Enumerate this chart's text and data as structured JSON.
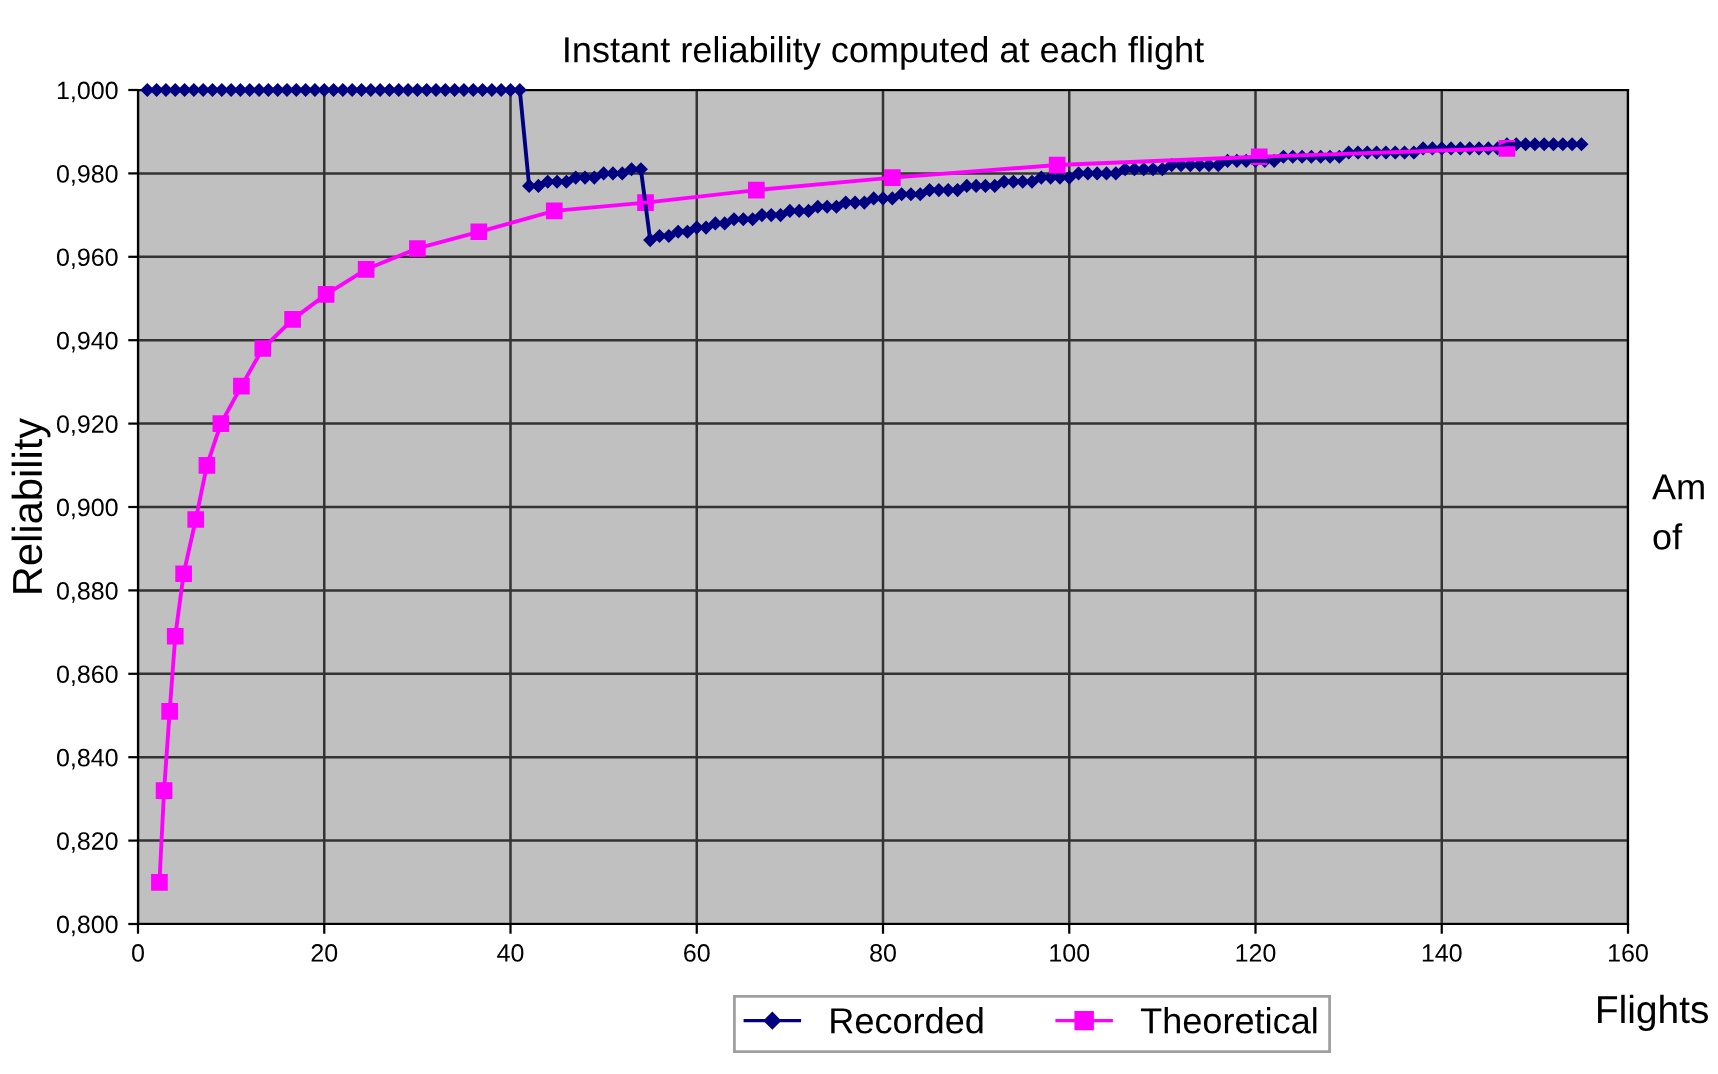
{
  "chart_data": {
    "type": "line",
    "title": "Instant reliability computed at each flight",
    "xlabel": "Flights",
    "ylabel": "Reliability",
    "annotations": [
      "Am",
      "of"
    ],
    "xlim": [
      0,
      160
    ],
    "xticks": [
      0,
      20,
      40,
      60,
      80,
      100,
      120,
      140,
      160
    ],
    "ylim": [
      0.8,
      1.0
    ],
    "yticks": [
      {
        "value": 0.8,
        "label": "0,800"
      },
      {
        "value": 0.82,
        "label": "0,820"
      },
      {
        "value": 0.84,
        "label": "0,840"
      },
      {
        "value": 0.86,
        "label": "0,860"
      },
      {
        "value": 0.88,
        "label": "0,880"
      },
      {
        "value": 0.9,
        "label": "0,900"
      },
      {
        "value": 0.92,
        "label": "0,920"
      },
      {
        "value": 0.94,
        "label": "0,940"
      },
      {
        "value": 0.96,
        "label": "0,960"
      },
      {
        "value": 0.98,
        "label": "0,980"
      },
      {
        "value": 1.0,
        "label": "1,000"
      }
    ],
    "grid": true,
    "legend": "bottom",
    "series": [
      {
        "name": "Recorded",
        "color": "#000080",
        "marker": "diamond",
        "x": [
          1,
          2,
          3,
          4,
          5,
          6,
          7,
          8,
          9,
          10,
          11,
          12,
          13,
          14,
          15,
          16,
          17,
          18,
          19,
          20,
          21,
          22,
          23,
          24,
          25,
          26,
          27,
          28,
          29,
          30,
          31,
          32,
          33,
          34,
          35,
          36,
          37,
          38,
          39,
          40,
          41,
          42,
          43,
          44,
          45,
          46,
          47,
          48,
          49,
          50,
          51,
          52,
          53,
          54,
          55,
          56,
          57,
          58,
          59,
          60,
          61,
          62,
          63,
          64,
          65,
          66,
          67,
          68,
          69,
          70,
          71,
          72,
          73,
          74,
          75,
          76,
          77,
          78,
          79,
          80,
          81,
          82,
          83,
          84,
          85,
          86,
          87,
          88,
          89,
          90,
          91,
          92,
          93,
          94,
          95,
          96,
          97,
          98,
          99,
          100,
          101,
          102,
          103,
          104,
          105,
          106,
          107,
          108,
          109,
          110,
          111,
          112,
          113,
          114,
          115,
          116,
          117,
          118,
          119,
          120,
          121,
          122,
          123,
          124,
          125,
          126,
          127,
          128,
          129,
          130,
          131,
          132,
          133,
          134,
          135,
          136,
          137,
          138,
          139,
          140,
          141,
          142,
          143,
          144,
          145,
          146,
          147,
          148,
          149,
          150,
          151,
          152,
          153,
          154,
          155
        ],
        "values": [
          1,
          1,
          1,
          1,
          1,
          1,
          1,
          1,
          1,
          1,
          1,
          1,
          1,
          1,
          1,
          1,
          1,
          1,
          1,
          1,
          1,
          1,
          1,
          1,
          1,
          1,
          1,
          1,
          1,
          1,
          1,
          1,
          1,
          1,
          1,
          1,
          1,
          1,
          1,
          1,
          1,
          0.977,
          0.977,
          0.978,
          0.978,
          0.978,
          0.979,
          0.979,
          0.979,
          0.98,
          0.98,
          0.98,
          0.981,
          0.981,
          0.964,
          0.965,
          0.965,
          0.966,
          0.966,
          0.967,
          0.967,
          0.968,
          0.968,
          0.969,
          0.969,
          0.969,
          0.97,
          0.97,
          0.97,
          0.971,
          0.971,
          0.971,
          0.972,
          0.972,
          0.972,
          0.973,
          0.973,
          0.973,
          0.974,
          0.974,
          0.974,
          0.975,
          0.975,
          0.975,
          0.976,
          0.976,
          0.976,
          0.976,
          0.977,
          0.977,
          0.977,
          0.977,
          0.978,
          0.978,
          0.978,
          0.978,
          0.979,
          0.979,
          0.979,
          0.979,
          0.98,
          0.98,
          0.98,
          0.98,
          0.98,
          0.981,
          0.981,
          0.981,
          0.981,
          0.981,
          0.982,
          0.982,
          0.982,
          0.982,
          0.982,
          0.982,
          0.983,
          0.983,
          0.983,
          0.983,
          0.983,
          0.983,
          0.984,
          0.984,
          0.984,
          0.984,
          0.984,
          0.984,
          0.984,
          0.985,
          0.985,
          0.985,
          0.985,
          0.985,
          0.985,
          0.985,
          0.985,
          0.986,
          0.986,
          0.986,
          0.986,
          0.986,
          0.986,
          0.986,
          0.986,
          0.986,
          0.987,
          0.987,
          0.987,
          0.987,
          0.987,
          0.987,
          0.987,
          0.987,
          0.987
        ]
      },
      {
        "name": "Theoretical",
        "color": "#ff00ff",
        "marker": "square",
        "x": [
          2.3,
          2.8,
          3.4,
          4.0,
          4.9,
          6.2,
          7.4,
          8.9,
          11.1,
          13.4,
          16.6,
          20.2,
          24.5,
          30,
          36.6,
          44.7,
          54.5,
          66.4,
          81,
          98.7,
          120.4,
          147
        ],
        "values": [
          0.81,
          0.832,
          0.851,
          0.869,
          0.884,
          0.897,
          0.91,
          0.92,
          0.929,
          0.938,
          0.945,
          0.951,
          0.957,
          0.962,
          0.966,
          0.971,
          0.973,
          0.976,
          0.979,
          0.982,
          0.984,
          0.986
        ]
      }
    ]
  }
}
